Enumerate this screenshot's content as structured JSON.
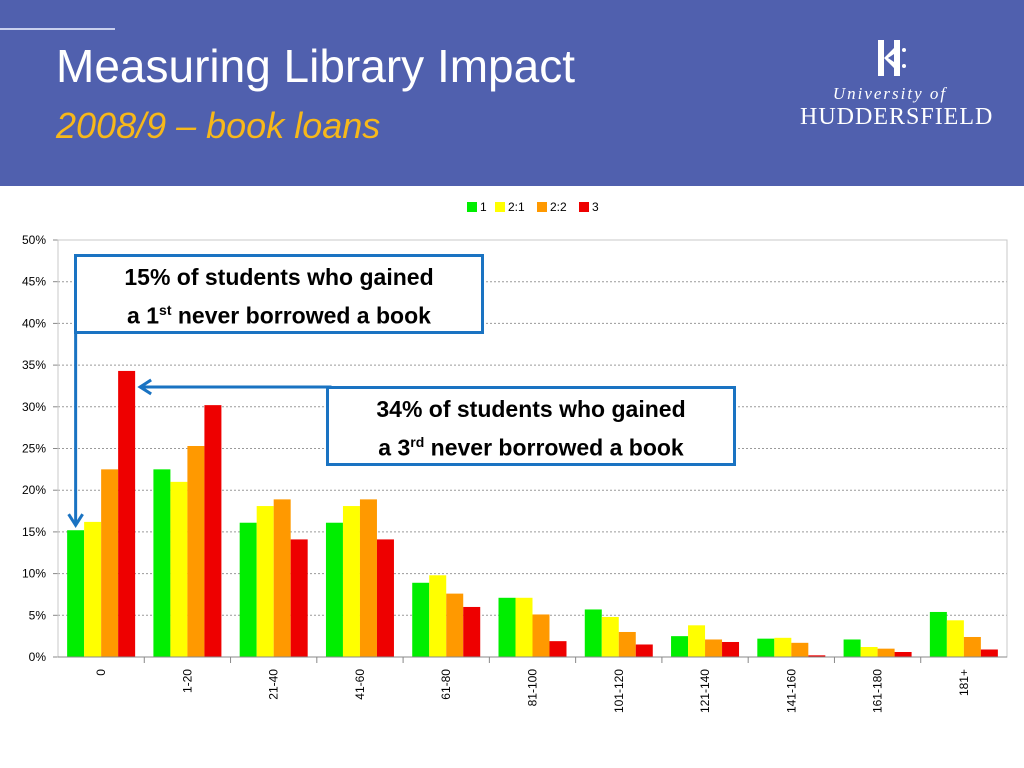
{
  "header": {
    "title": "Measuring Library Impact",
    "subtitle": "2008/9 – book loans",
    "logo_line1": "University of",
    "logo_line2": "HUDDERSFIELD",
    "bg_color": "#5060AE",
    "subtitle_color": "#F7B81A"
  },
  "callouts": [
    {
      "line1": "15% of students who gained",
      "line2_pre": "a 1",
      "sup": "st",
      "line2_post": " never borrowed a book"
    },
    {
      "line1": "34% of students who gained",
      "line2_pre": "a 3",
      "sup": "rd",
      "line2_post": " never borrowed a book"
    }
  ],
  "chart_data": {
    "type": "bar",
    "categories": [
      "0",
      "1-20",
      "21-40",
      "41-60",
      "61-80",
      "81-100",
      "101-120",
      "121-140",
      "141-160",
      "161-180",
      "181+"
    ],
    "series": [
      {
        "name": "1",
        "color": "#00EE00",
        "values": [
          15.2,
          22.5,
          16.1,
          16.1,
          8.9,
          7.1,
          5.7,
          2.5,
          2.2,
          2.1,
          5.4
        ]
      },
      {
        "name": "2:1",
        "color": "#FFFF00",
        "values": [
          16.2,
          21.0,
          18.1,
          18.1,
          9.8,
          7.1,
          4.8,
          3.8,
          2.3,
          1.2,
          4.4
        ]
      },
      {
        "name": "2:2",
        "color": "#FF9900",
        "values": [
          22.5,
          25.3,
          18.9,
          18.9,
          7.6,
          5.1,
          3.0,
          2.1,
          1.7,
          1.0,
          2.4
        ]
      },
      {
        "name": "3",
        "color": "#EE0000",
        "values": [
          34.3,
          30.2,
          14.1,
          14.1,
          6.0,
          1.9,
          1.5,
          1.8,
          0.2,
          0.6,
          0.9
        ]
      }
    ],
    "y_ticks": [
      "0%",
      "5%",
      "10%",
      "15%",
      "20%",
      "25%",
      "30%",
      "35%",
      "40%",
      "45%",
      "50%"
    ],
    "ylim": [
      0,
      50
    ],
    "grid": true,
    "legend": "top"
  }
}
